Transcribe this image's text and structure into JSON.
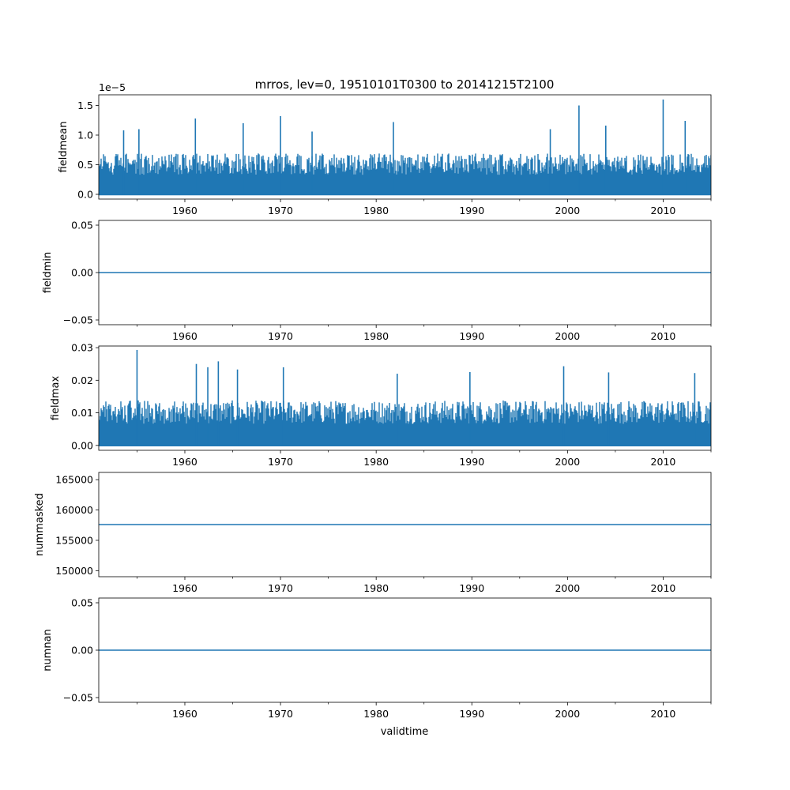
{
  "title": "mrros, lev=0, 19510101T0300 to 20141215T2100",
  "xlabel": "validtime",
  "series_color": "#1f77b4",
  "chart_data": [
    {
      "type": "line",
      "ylabel": "fieldmean",
      "offset_label": "1e−5",
      "xlim": [
        1951.0,
        2015.0
      ],
      "ylim": [
        -0.08,
        1.68
      ],
      "yticks": [
        0.0,
        0.5,
        1.0,
        1.5
      ],
      "ytick_labels": [
        "0.0",
        "0.5",
        "1.0",
        "1.5"
      ],
      "xticks": [
        1960,
        1970,
        1980,
        1990,
        2000,
        2010
      ],
      "band_low": 0.0,
      "band_typical": 0.6,
      "spikes": [
        {
          "x": 1953.6,
          "y": 1.08
        },
        {
          "x": 1955.2,
          "y": 1.1
        },
        {
          "x": 1961.1,
          "y": 1.28
        },
        {
          "x": 1966.1,
          "y": 1.2
        },
        {
          "x": 1970.0,
          "y": 1.32
        },
        {
          "x": 1973.3,
          "y": 1.06
        },
        {
          "x": 1981.8,
          "y": 1.22
        },
        {
          "x": 1998.2,
          "y": 1.1
        },
        {
          "x": 2001.2,
          "y": 1.5
        },
        {
          "x": 2004.0,
          "y": 1.16
        },
        {
          "x": 2010.0,
          "y": 1.6
        },
        {
          "x": 2012.3,
          "y": 1.24
        }
      ]
    },
    {
      "type": "line",
      "ylabel": "fieldmin",
      "xlim": [
        1951.0,
        2015.0
      ],
      "ylim": [
        -0.055,
        0.055
      ],
      "yticks": [
        -0.05,
        0.0,
        0.05
      ],
      "ytick_labels": [
        "−0.05",
        "0.00",
        "0.05"
      ],
      "xticks": [
        1960,
        1970,
        1980,
        1990,
        2000,
        2010
      ],
      "constant": 0.0
    },
    {
      "type": "line",
      "ylabel": "fieldmax",
      "xlim": [
        1951.0,
        2015.0
      ],
      "ylim": [
        -0.0015,
        0.0305
      ],
      "yticks": [
        0.0,
        0.01,
        0.02,
        0.03
      ],
      "ytick_labels": [
        "0.00",
        "0.01",
        "0.02",
        "0.03"
      ],
      "xticks": [
        1960,
        1970,
        1980,
        1990,
        2000,
        2010
      ],
      "band_low": 0.0,
      "band_typical": 0.012,
      "spikes": [
        {
          "x": 1955.0,
          "y": 0.0293
        },
        {
          "x": 1961.2,
          "y": 0.025
        },
        {
          "x": 1962.4,
          "y": 0.024
        },
        {
          "x": 1963.5,
          "y": 0.0258
        },
        {
          "x": 1965.5,
          "y": 0.0233
        },
        {
          "x": 1970.3,
          "y": 0.024
        },
        {
          "x": 1982.2,
          "y": 0.022
        },
        {
          "x": 1989.8,
          "y": 0.0225
        },
        {
          "x": 1999.6,
          "y": 0.0243
        },
        {
          "x": 2004.3,
          "y": 0.0224
        },
        {
          "x": 2013.3,
          "y": 0.0222
        }
      ]
    },
    {
      "type": "line",
      "ylabel": "nummasked",
      "xlim": [
        1951.0,
        2015.0
      ],
      "ylim": [
        149000,
        166200
      ],
      "yticks": [
        150000,
        155000,
        160000,
        165000
      ],
      "ytick_labels": [
        "150000",
        "155000",
        "160000",
        "165000"
      ],
      "xticks": [
        1960,
        1970,
        1980,
        1990,
        2000,
        2010
      ],
      "constant": 157600
    },
    {
      "type": "line",
      "ylabel": "numnan",
      "xlim": [
        1951.0,
        2015.0
      ],
      "ylim": [
        -0.055,
        0.055
      ],
      "yticks": [
        -0.05,
        0.0,
        0.05
      ],
      "ytick_labels": [
        "−0.05",
        "0.00",
        "0.05"
      ],
      "xticks": [
        1960,
        1970,
        1980,
        1990,
        2000,
        2010
      ],
      "constant": 0.0
    }
  ]
}
